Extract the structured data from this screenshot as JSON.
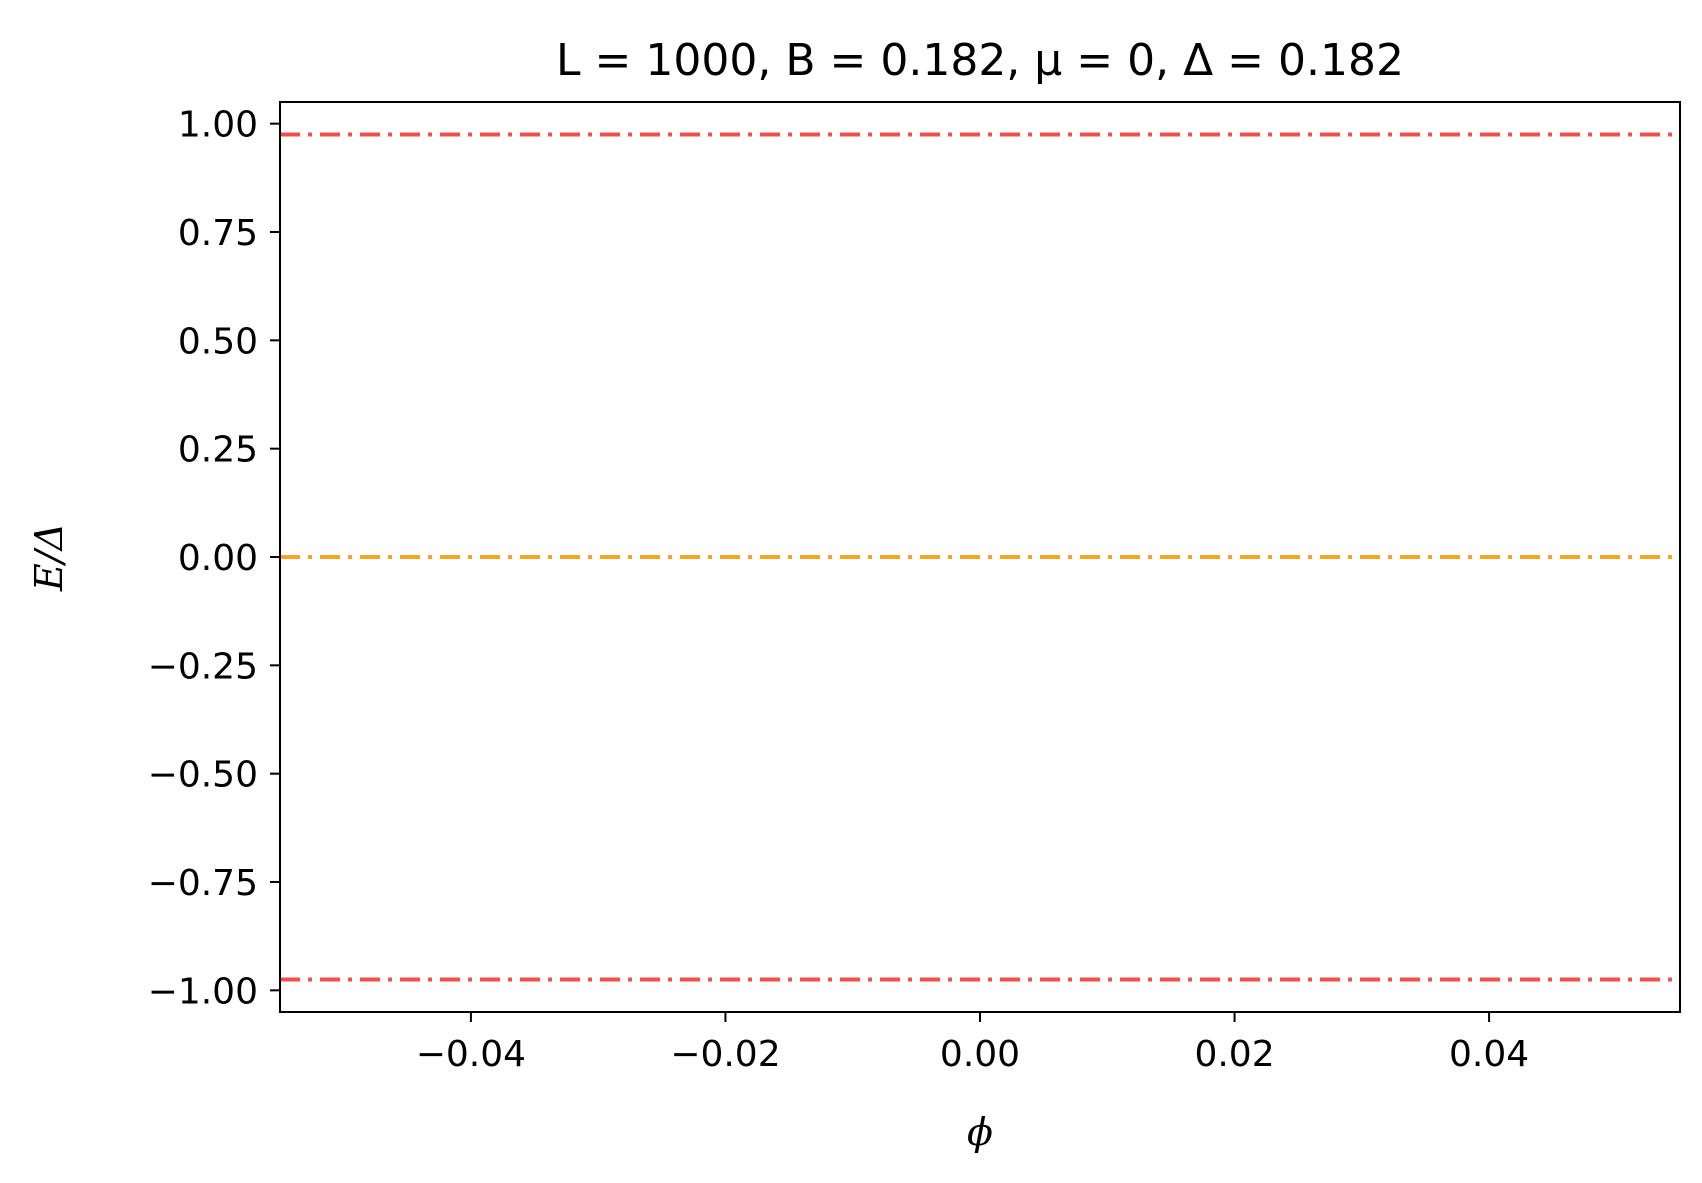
{
  "chart_data": {
    "type": "line",
    "title": "L = 1000, B = 0.182, μ = 0, Δ = 0.182",
    "xlabel": "ϕ",
    "ylabel": "E/Δ",
    "xlim": [
      -0.055,
      0.055
    ],
    "ylim": [
      -1.05,
      1.05
    ],
    "x_ticks": [
      -0.04,
      -0.02,
      0.0,
      0.02,
      0.04
    ],
    "x_tick_labels": [
      "−0.04",
      "−0.02",
      "0.00",
      "0.02",
      "0.04"
    ],
    "y_ticks": [
      1.0,
      0.75,
      0.5,
      0.25,
      0.0,
      -0.25,
      -0.5,
      -0.75,
      -1.0
    ],
    "y_tick_labels": [
      "1.00",
      "0.75",
      "0.50",
      "0.25",
      "0.00",
      "−0.25",
      "−0.50",
      "−0.75",
      "−1.00"
    ],
    "grid": false,
    "series": [
      {
        "x": [
          -0.055,
          0.055
        ],
        "y": [
          0.975,
          0.975
        ],
        "color": "#f24f4f",
        "style": "dashdot"
      },
      {
        "x": [
          -0.055,
          0.055
        ],
        "y": [
          0.0,
          0.0
        ],
        "color": "#f5a623",
        "style": "dashdot"
      },
      {
        "x": [
          -0.055,
          0.055
        ],
        "y": [
          -0.975,
          -0.975
        ],
        "color": "#f24f4f",
        "style": "dashdot"
      }
    ]
  }
}
